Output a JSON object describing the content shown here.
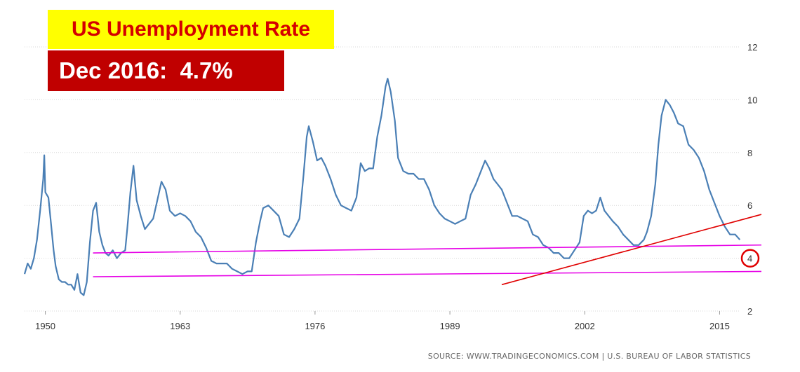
{
  "title": "US Unemployment Rate",
  "subtitle": "Dec 2016:  4.7%",
  "source": "SOURCE: WWW.TRADINGECONOMICS.COM | U.S. BUREAU OF LABOR STATISTICS",
  "colors": {
    "line": "#4a7fb5",
    "support": "#e600e6",
    "trend": "#e00000",
    "title_bg": "#ffff00",
    "title_fg": "#d40000",
    "subtitle_bg": "#c00000",
    "subtitle_fg": "#ffffff"
  },
  "chart_data": {
    "type": "line",
    "title": "US Unemployment Rate",
    "xlabel": "",
    "ylabel": "",
    "xlim": [
      1948,
      2017
    ],
    "ylim": [
      2,
      12
    ],
    "x_ticks": [
      "1950",
      "1963",
      "1976",
      "1989",
      "2002",
      "2015"
    ],
    "y_ticks": [
      "2",
      "4",
      "6",
      "8",
      "10",
      "12"
    ],
    "y_axis_position": "right",
    "grid": "horizontal",
    "highlighted_tick": "4",
    "series": [
      {
        "name": "",
        "points": [
          [
            1948.0,
            3.4
          ],
          [
            1948.3,
            3.8
          ],
          [
            1948.6,
            3.6
          ],
          [
            1948.9,
            4.0
          ],
          [
            1949.2,
            4.7
          ],
          [
            1949.5,
            5.8
          ],
          [
            1949.8,
            7.0
          ],
          [
            1949.9,
            7.9
          ],
          [
            1950.0,
            6.5
          ],
          [
            1950.3,
            6.3
          ],
          [
            1950.5,
            5.5
          ],
          [
            1950.8,
            4.3
          ],
          [
            1951.0,
            3.7
          ],
          [
            1951.3,
            3.2
          ],
          [
            1951.6,
            3.1
          ],
          [
            1951.9,
            3.1
          ],
          [
            1952.2,
            3.0
          ],
          [
            1952.5,
            3.0
          ],
          [
            1952.8,
            2.8
          ],
          [
            1953.1,
            3.4
          ],
          [
            1953.4,
            2.7
          ],
          [
            1953.7,
            2.6
          ],
          [
            1954.0,
            3.1
          ],
          [
            1954.3,
            4.6
          ],
          [
            1954.6,
            5.8
          ],
          [
            1954.9,
            6.1
          ],
          [
            1955.2,
            5.0
          ],
          [
            1955.5,
            4.5
          ],
          [
            1955.8,
            4.2
          ],
          [
            1956.1,
            4.1
          ],
          [
            1956.5,
            4.3
          ],
          [
            1956.9,
            4.0
          ],
          [
            1957.3,
            4.2
          ],
          [
            1957.7,
            4.3
          ],
          [
            1957.9,
            5.1
          ],
          [
            1958.2,
            6.5
          ],
          [
            1958.5,
            7.5
          ],
          [
            1958.8,
            6.2
          ],
          [
            1959.2,
            5.6
          ],
          [
            1959.6,
            5.1
          ],
          [
            1960.0,
            5.3
          ],
          [
            1960.4,
            5.5
          ],
          [
            1960.8,
            6.2
          ],
          [
            1961.2,
            6.9
          ],
          [
            1961.6,
            6.6
          ],
          [
            1962.0,
            5.8
          ],
          [
            1962.5,
            5.6
          ],
          [
            1963.0,
            5.7
          ],
          [
            1963.5,
            5.6
          ],
          [
            1964.0,
            5.4
          ],
          [
            1964.5,
            5.0
          ],
          [
            1965.0,
            4.8
          ],
          [
            1965.5,
            4.4
          ],
          [
            1966.0,
            3.9
          ],
          [
            1966.5,
            3.8
          ],
          [
            1967.0,
            3.8
          ],
          [
            1967.5,
            3.8
          ],
          [
            1968.0,
            3.6
          ],
          [
            1968.5,
            3.5
          ],
          [
            1969.0,
            3.4
          ],
          [
            1969.5,
            3.5
          ],
          [
            1969.9,
            3.5
          ],
          [
            1970.3,
            4.6
          ],
          [
            1970.7,
            5.4
          ],
          [
            1971.0,
            5.9
          ],
          [
            1971.5,
            6.0
          ],
          [
            1972.0,
            5.8
          ],
          [
            1972.5,
            5.6
          ],
          [
            1973.0,
            4.9
          ],
          [
            1973.5,
            4.8
          ],
          [
            1974.0,
            5.1
          ],
          [
            1974.5,
            5.5
          ],
          [
            1974.9,
            7.2
          ],
          [
            1975.2,
            8.6
          ],
          [
            1975.4,
            9.0
          ],
          [
            1975.8,
            8.4
          ],
          [
            1976.2,
            7.7
          ],
          [
            1976.6,
            7.8
          ],
          [
            1977.0,
            7.5
          ],
          [
            1977.5,
            7.0
          ],
          [
            1978.0,
            6.4
          ],
          [
            1978.5,
            6.0
          ],
          [
            1979.0,
            5.9
          ],
          [
            1979.5,
            5.8
          ],
          [
            1980.0,
            6.3
          ],
          [
            1980.4,
            7.6
          ],
          [
            1980.8,
            7.3
          ],
          [
            1981.2,
            7.4
          ],
          [
            1981.6,
            7.4
          ],
          [
            1982.0,
            8.6
          ],
          [
            1982.4,
            9.4
          ],
          [
            1982.8,
            10.5
          ],
          [
            1983.0,
            10.8
          ],
          [
            1983.3,
            10.3
          ],
          [
            1983.7,
            9.2
          ],
          [
            1984.0,
            7.8
          ],
          [
            1984.5,
            7.3
          ],
          [
            1985.0,
            7.2
          ],
          [
            1985.5,
            7.2
          ],
          [
            1986.0,
            7.0
          ],
          [
            1986.5,
            7.0
          ],
          [
            1987.0,
            6.6
          ],
          [
            1987.5,
            6.0
          ],
          [
            1988.0,
            5.7
          ],
          [
            1988.5,
            5.5
          ],
          [
            1989.0,
            5.4
          ],
          [
            1989.5,
            5.3
          ],
          [
            1990.0,
            5.4
          ],
          [
            1990.5,
            5.5
          ],
          [
            1991.0,
            6.4
          ],
          [
            1991.5,
            6.8
          ],
          [
            1992.0,
            7.3
          ],
          [
            1992.4,
            7.7
          ],
          [
            1992.8,
            7.4
          ],
          [
            1993.2,
            7.0
          ],
          [
            1993.6,
            6.8
          ],
          [
            1994.0,
            6.6
          ],
          [
            1994.5,
            6.1
          ],
          [
            1995.0,
            5.6
          ],
          [
            1995.5,
            5.6
          ],
          [
            1996.0,
            5.5
          ],
          [
            1996.5,
            5.4
          ],
          [
            1997.0,
            4.9
          ],
          [
            1997.5,
            4.8
          ],
          [
            1998.0,
            4.5
          ],
          [
            1998.5,
            4.4
          ],
          [
            1999.0,
            4.2
          ],
          [
            1999.5,
            4.2
          ],
          [
            2000.0,
            4.0
          ],
          [
            2000.5,
            4.0
          ],
          [
            2001.0,
            4.3
          ],
          [
            2001.5,
            4.6
          ],
          [
            2001.9,
            5.6
          ],
          [
            2002.3,
            5.8
          ],
          [
            2002.7,
            5.7
          ],
          [
            2003.1,
            5.8
          ],
          [
            2003.5,
            6.3
          ],
          [
            2003.9,
            5.8
          ],
          [
            2004.3,
            5.6
          ],
          [
            2004.7,
            5.4
          ],
          [
            2005.2,
            5.2
          ],
          [
            2005.7,
            4.9
          ],
          [
            2006.2,
            4.7
          ],
          [
            2006.7,
            4.5
          ],
          [
            2007.2,
            4.5
          ],
          [
            2007.7,
            4.7
          ],
          [
            2008.0,
            5.0
          ],
          [
            2008.4,
            5.6
          ],
          [
            2008.8,
            6.8
          ],
          [
            2009.1,
            8.3
          ],
          [
            2009.4,
            9.4
          ],
          [
            2009.8,
            10.0
          ],
          [
            2010.2,
            9.8
          ],
          [
            2010.6,
            9.5
          ],
          [
            2011.0,
            9.1
          ],
          [
            2011.5,
            9.0
          ],
          [
            2012.0,
            8.3
          ],
          [
            2012.5,
            8.1
          ],
          [
            2013.0,
            7.8
          ],
          [
            2013.5,
            7.3
          ],
          [
            2014.0,
            6.6
          ],
          [
            2014.5,
            6.1
          ],
          [
            2015.0,
            5.6
          ],
          [
            2015.5,
            5.2
          ],
          [
            2016.0,
            4.9
          ],
          [
            2016.5,
            4.9
          ],
          [
            2016.95,
            4.7
          ]
        ]
      }
    ],
    "annotations": [
      {
        "type": "support-line",
        "from": [
          1954.6,
          4.2
        ],
        "to": [
          2017.0,
          4.5
        ]
      },
      {
        "type": "support-line",
        "from": [
          1954.6,
          3.3
        ],
        "to": [
          2017.0,
          3.5
        ]
      },
      {
        "type": "trend-line",
        "from": [
          1994.0,
          3.0
        ],
        "to": [
          2017.0,
          5.5
        ]
      }
    ]
  }
}
